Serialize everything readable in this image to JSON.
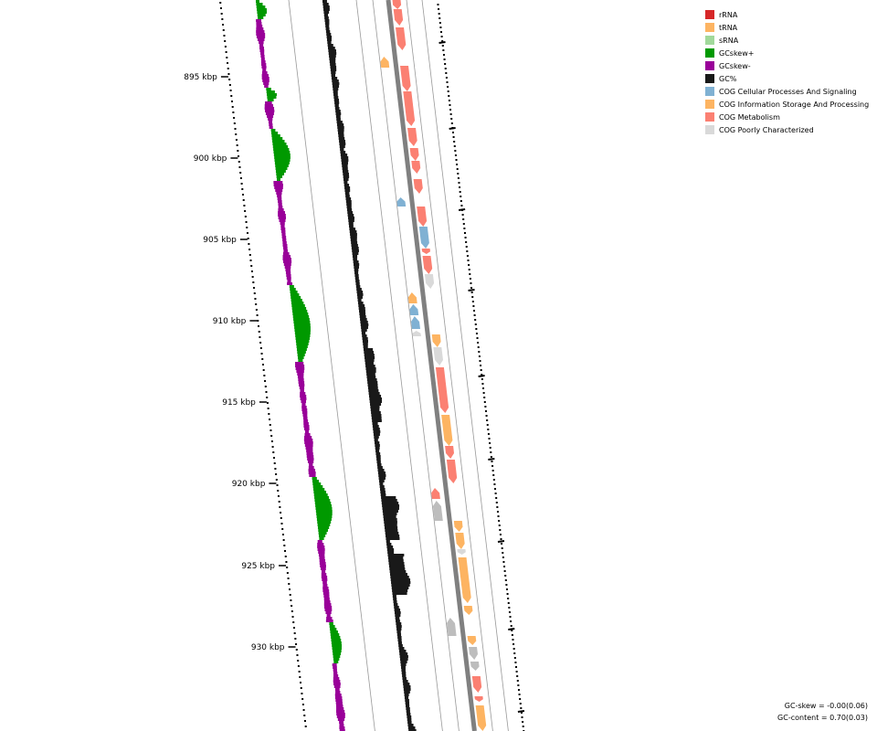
{
  "legend": [
    {
      "label": "rRNA",
      "color": "#d62728"
    },
    {
      "label": "tRNA",
      "color": "#fdb462"
    },
    {
      "label": "sRNA",
      "color": "#a1d99b"
    },
    {
      "label": "GCskew+",
      "color": "#009900"
    },
    {
      "label": "GCskew-",
      "color": "#990099"
    },
    {
      "label": "GC%",
      "color": "#191919"
    },
    {
      "label": "COG Cellular Processes And Signaling",
      "color": "#80b1d3"
    },
    {
      "label": "COG Information Storage And Processing",
      "color": "#fdb462"
    },
    {
      "label": "COG Metabolism",
      "color": "#fb8072"
    },
    {
      "label": "COG Poorly Characterized",
      "color": "#d9d9d9"
    }
  ],
  "ticks": [
    "895 kbp",
    "900 kbp",
    "905 kbp",
    "910 kbp",
    "915 kbp",
    "920 kbp",
    "925 kbp",
    "930 kbp"
  ],
  "stats": {
    "gc_skew": "GC-skew = -0.00(0.06)",
    "gc_content": "GC-content = 0.70(0.03)"
  },
  "colors": {
    "skew_pos": "#009900",
    "skew_neg": "#990099",
    "gc": "#191919",
    "backbone": "#808080",
    "guide": "#999999",
    "gene_gray": "#bdbdbd"
  }
}
